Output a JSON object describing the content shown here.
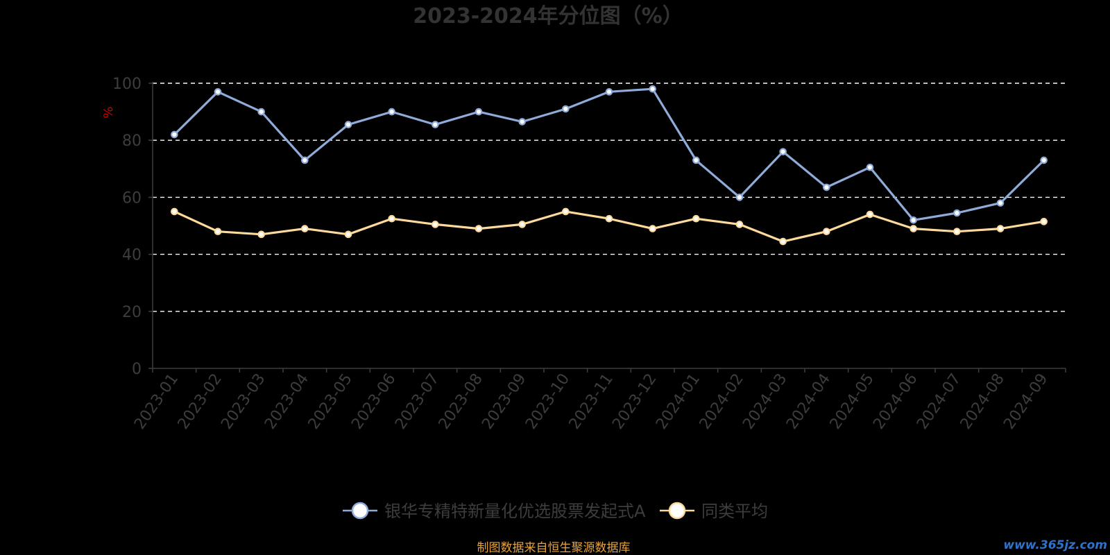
{
  "chart_data": {
    "type": "line",
    "title": "2023-2024年分位图（%）",
    "ylabel": "%",
    "xlabel": "",
    "ylim": [
      0,
      100
    ],
    "yticks": [
      0,
      20,
      40,
      60,
      80,
      100
    ],
    "grid": true,
    "legend_position": "bottom-center",
    "categories": [
      "2023-01",
      "2023-02",
      "2023-03",
      "2023-04",
      "2023-05",
      "2023-06",
      "2023-07",
      "2023-08",
      "2023-09",
      "2023-10",
      "2023-11",
      "2023-12",
      "2024-01",
      "2024-02",
      "2024-03",
      "2024-04",
      "2024-05",
      "2024-06",
      "2024-07",
      "2024-08",
      "2024-09"
    ],
    "series": [
      {
        "name": "银华专精特新量化优选股票发起式A",
        "color": "#8eabd9",
        "values": [
          82,
          97,
          90,
          73,
          85.5,
          90,
          85.5,
          90,
          86.5,
          91,
          97,
          98,
          73,
          60,
          76,
          63.5,
          70.5,
          52,
          54.5,
          58,
          73
        ]
      },
      {
        "name": "同类平均",
        "color": "#fdd99b",
        "values": [
          55,
          48,
          47,
          49,
          47,
          52.5,
          50.5,
          49,
          50.5,
          55,
          52.5,
          49,
          52.5,
          50.5,
          44.5,
          48,
          54,
          49,
          48,
          49,
          51.5
        ]
      }
    ]
  },
  "footer": {
    "source": "制图数据来自恒生聚源数据库",
    "watermark": "www.365jz.com"
  },
  "colors": {
    "background": "#000000",
    "title": "#333333",
    "axis_text": "#3d3d3d",
    "ylabel": "#cc0000",
    "grid": "#ffffff",
    "source": "#e8a33a",
    "watermark": "#2f73c9"
  }
}
